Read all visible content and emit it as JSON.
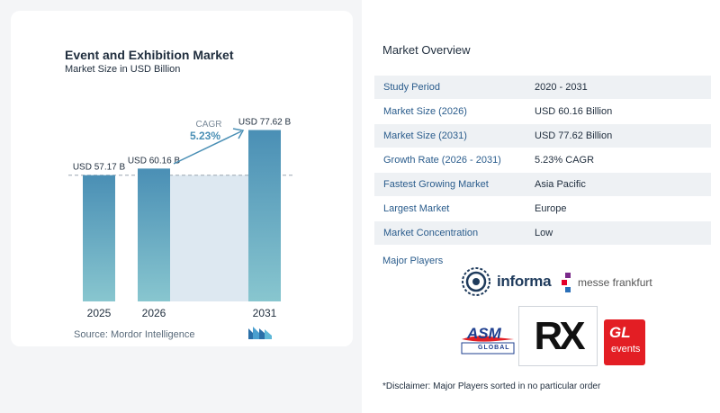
{
  "chart_data": {
    "type": "bar",
    "title": "Event and Exhibition Market",
    "subtitle": "Market Size in USD Billion",
    "categories": [
      "2025",
      "2026",
      "2031"
    ],
    "values": [
      57.17,
      60.16,
      77.62
    ],
    "data_labels": [
      "USD 57.17 B",
      "USD 60.16 B",
      "USD 77.62 B"
    ],
    "cagr_label": "CAGR",
    "cagr_value": "5.23%",
    "colors": {
      "bar_top": "#4a8fb5",
      "bar_bottom": "#88c6cf",
      "cagr": "#4a8fb5",
      "shade": "#dde8f1"
    }
  },
  "source": "Source:  Mordor Intelligence",
  "overview": {
    "title": "Market Overview",
    "rows": [
      {
        "label": "Study Period",
        "value": "2020 - 2031"
      },
      {
        "label": "Market Size (2026)",
        "value": "USD 60.16 Billion"
      },
      {
        "label": "Market Size (2031)",
        "value": "USD 77.62 Billion"
      },
      {
        "label": "Growth Rate (2026 - 2031)",
        "value": "5.23% CAGR"
      },
      {
        "label": "Fastest Growing Market",
        "value": "Asia Pacific"
      },
      {
        "label": "Largest Market",
        "value": "Europe"
      },
      {
        "label": "Market Concentration",
        "value": "Low"
      }
    ],
    "major_players_label": "Major Players",
    "disclaimer": "*Disclaimer: Major Players sorted in no particular order"
  },
  "logos": {
    "informa": "informa",
    "messe": "messe frankfurt",
    "asm": "ASM",
    "asm_sub": "GLOBAL",
    "rx": "RX",
    "gl": "GL",
    "gl_sub": "events"
  }
}
